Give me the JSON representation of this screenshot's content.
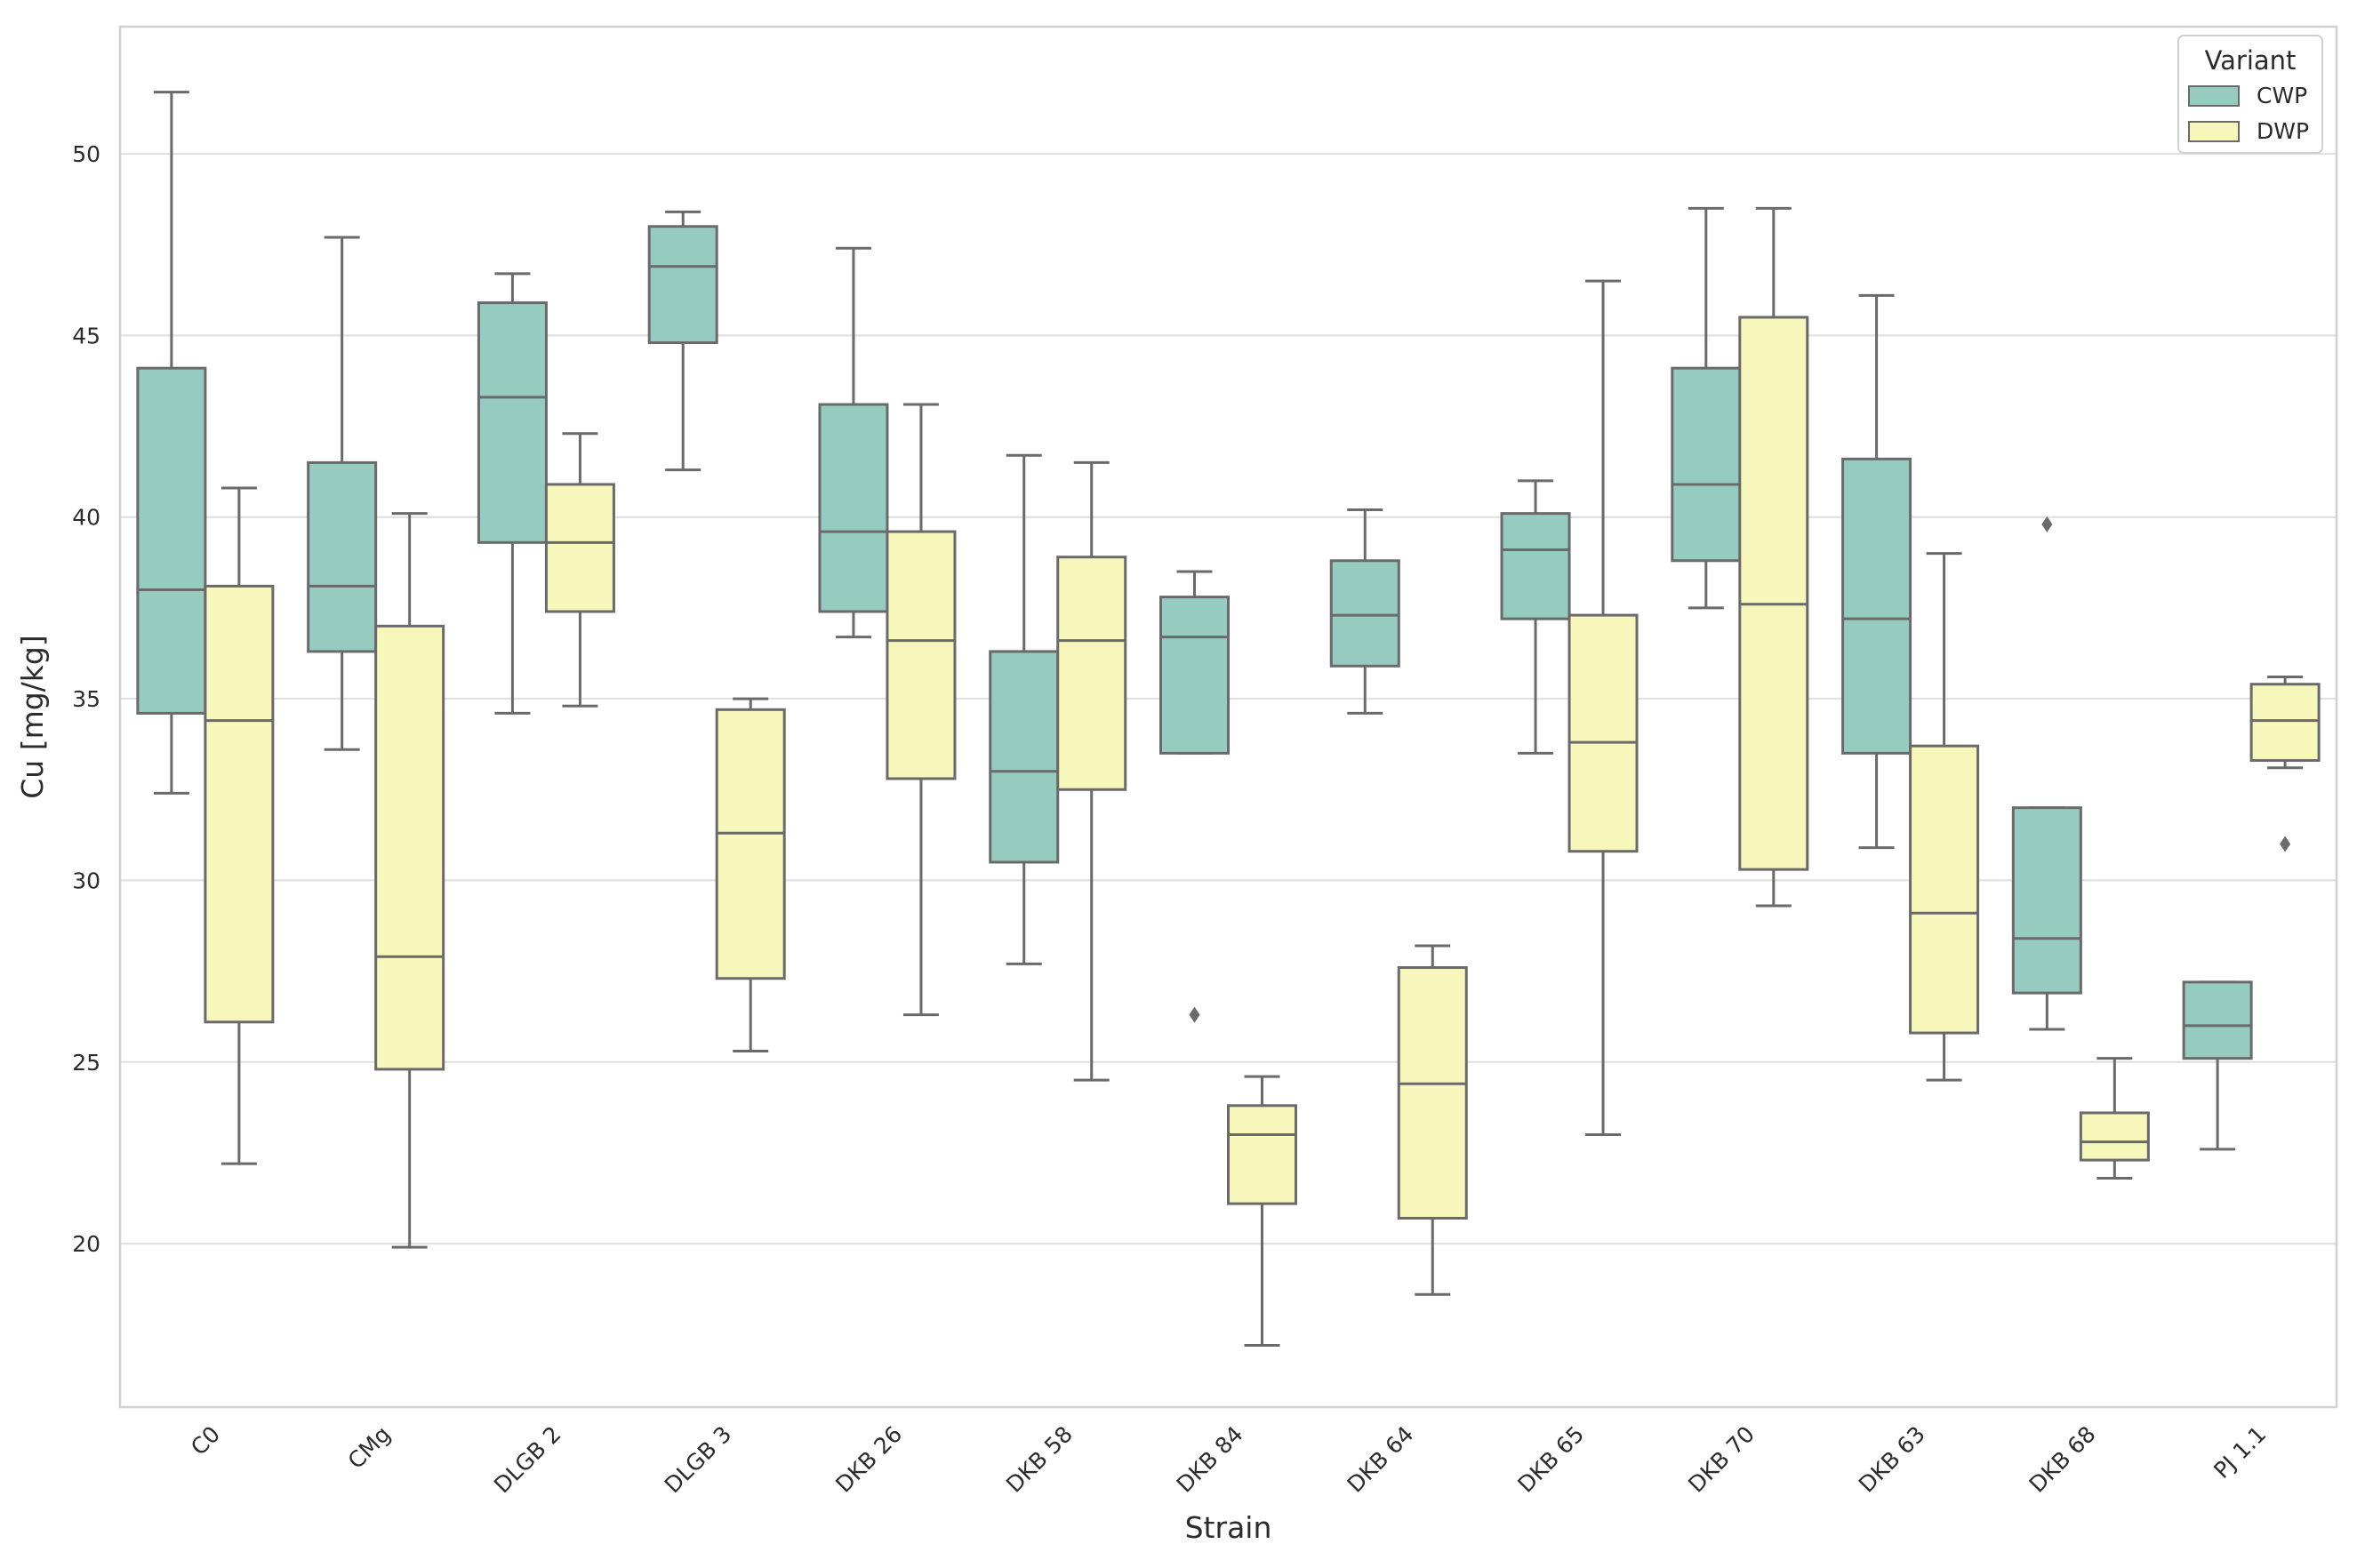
{
  "chart_data": {
    "type": "box",
    "xlabel": "Strain",
    "ylabel": "Cu [mg/kg]",
    "ylim": [
      15.5,
      53.5
    ],
    "yticks": [
      20,
      25,
      30,
      35,
      40,
      45,
      50
    ],
    "grid": "horizontal",
    "legend": {
      "title": "Variant",
      "placement": "top-right",
      "entries": [
        "CWP",
        "DWP"
      ]
    },
    "colors": {
      "CWP": "#96cbbf",
      "DWP": "#f7f6bb",
      "edge": "#6a6a6a",
      "grid": "#e1e1e1"
    },
    "categories": [
      "C0",
      "CMg",
      "DLGB 2",
      "DLGB 3",
      "DKB 26",
      "DKB 58",
      "DKB 84",
      "DKB 64",
      "DKB 65",
      "DKB 70",
      "DKB 63",
      "DKB 68",
      "PJ 1.1"
    ],
    "series": [
      {
        "name": "CWP",
        "boxes": [
          {
            "whislo": 32.4,
            "q1": 34.6,
            "med": 38.0,
            "q3": 44.1,
            "whishi": 51.7,
            "fliers": []
          },
          {
            "whislo": 33.6,
            "q1": 36.3,
            "med": 38.1,
            "q3": 41.5,
            "whishi": 47.7,
            "fliers": []
          },
          {
            "whislo": 34.6,
            "q1": 39.3,
            "med": 43.3,
            "q3": 45.9,
            "whishi": 46.7,
            "fliers": []
          },
          {
            "whislo": 41.3,
            "q1": 44.8,
            "med": 46.9,
            "q3": 48.0,
            "whishi": 48.4,
            "fliers": []
          },
          {
            "whislo": 36.7,
            "q1": 37.4,
            "med": 39.6,
            "q3": 43.1,
            "whishi": 47.4,
            "fliers": []
          },
          {
            "whislo": 27.7,
            "q1": 30.5,
            "med": 33.0,
            "q3": 36.3,
            "whishi": 41.7,
            "fliers": []
          },
          {
            "whislo": 33.5,
            "q1": 33.5,
            "med": 36.7,
            "q3": 37.8,
            "whishi": 38.5,
            "fliers": [
              26.3
            ]
          },
          {
            "whislo": 34.6,
            "q1": 35.9,
            "med": 37.3,
            "q3": 38.8,
            "whishi": 40.2,
            "fliers": []
          },
          {
            "whislo": 33.5,
            "q1": 37.2,
            "med": 39.1,
            "q3": 40.1,
            "whishi": 41.0,
            "fliers": []
          },
          {
            "whislo": 37.5,
            "q1": 38.8,
            "med": 40.9,
            "q3": 44.1,
            "whishi": 48.5,
            "fliers": []
          },
          {
            "whislo": 30.9,
            "q1": 33.5,
            "med": 37.2,
            "q3": 41.6,
            "whishi": 46.1,
            "fliers": []
          },
          {
            "whislo": 25.9,
            "q1": 26.9,
            "med": 28.4,
            "q3": 32.0,
            "whishi": 32.0,
            "fliers": [
              39.8
            ]
          },
          {
            "whislo": 22.6,
            "q1": 25.1,
            "med": 26.0,
            "q3": 27.2,
            "whishi": 27.2,
            "fliers": []
          }
        ]
      },
      {
        "name": "DWP",
        "boxes": [
          {
            "whislo": 22.2,
            "q1": 26.1,
            "med": 34.4,
            "q3": 38.1,
            "whishi": 40.8,
            "fliers": []
          },
          {
            "whislo": 19.9,
            "q1": 24.8,
            "med": 27.9,
            "q3": 37.0,
            "whishi": 40.1,
            "fliers": []
          },
          {
            "whislo": 34.8,
            "q1": 37.4,
            "med": 39.3,
            "q3": 40.9,
            "whishi": 42.3,
            "fliers": []
          },
          {
            "whislo": 25.3,
            "q1": 27.3,
            "med": 31.3,
            "q3": 34.7,
            "whishi": 35.0,
            "fliers": []
          },
          {
            "whislo": 26.3,
            "q1": 32.8,
            "med": 36.6,
            "q3": 39.6,
            "whishi": 43.1,
            "fliers": []
          },
          {
            "whislo": 24.5,
            "q1": 32.5,
            "med": 36.6,
            "q3": 38.9,
            "whishi": 41.5,
            "fliers": []
          },
          {
            "whislo": 17.2,
            "q1": 21.1,
            "med": 23.0,
            "q3": 23.8,
            "whishi": 24.6,
            "fliers": []
          },
          {
            "whislo": 18.6,
            "q1": 20.7,
            "med": 24.4,
            "q3": 27.6,
            "whishi": 28.2,
            "fliers": []
          },
          {
            "whislo": 23.0,
            "q1": 30.8,
            "med": 33.8,
            "q3": 37.3,
            "whishi": 46.5,
            "fliers": []
          },
          {
            "whislo": 29.3,
            "q1": 30.3,
            "med": 37.6,
            "q3": 45.5,
            "whishi": 48.5,
            "fliers": []
          },
          {
            "whislo": 24.5,
            "q1": 25.8,
            "med": 29.1,
            "q3": 33.7,
            "whishi": 39.0,
            "fliers": []
          },
          {
            "whislo": 21.8,
            "q1": 22.3,
            "med": 22.8,
            "q3": 23.6,
            "whishi": 25.1,
            "fliers": []
          },
          {
            "whislo": 33.1,
            "q1": 33.3,
            "med": 34.4,
            "q3": 35.4,
            "whishi": 35.6,
            "fliers": [
              31.0
            ]
          }
        ]
      }
    ]
  }
}
